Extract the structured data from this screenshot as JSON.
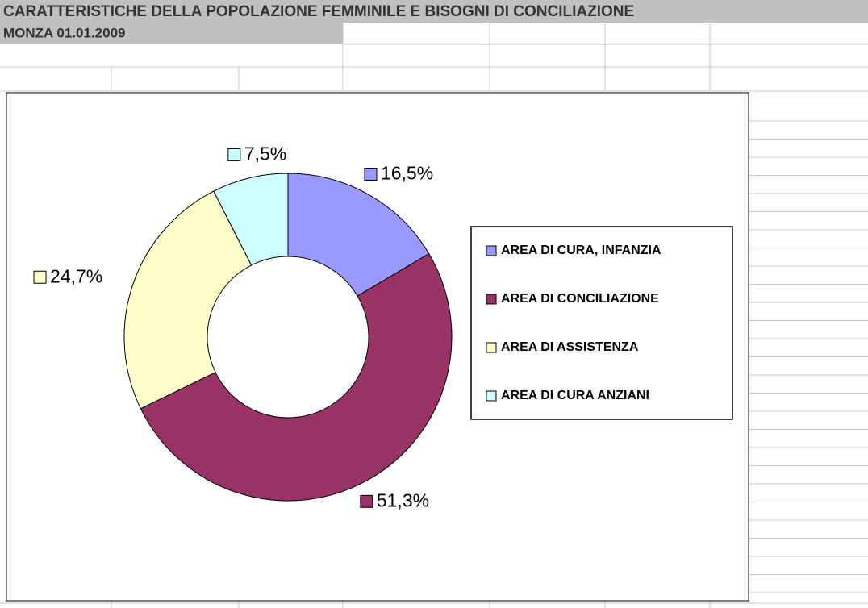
{
  "chart_data": {
    "type": "donut",
    "title": "CARATTERISTICHE DELLA POPOLAZIONE FEMMINILE E BISOGNI DI CONCILIAZIONE",
    "subtitle": "MONZA 01.01.2009",
    "categories": [
      "AREA DI CURA, INFANZIA",
      "AREA DI CONCILIAZIONE",
      "AREA DI ASSISTENZA",
      "AREA DI CURA ANZIANI"
    ],
    "values": [
      16.5,
      51.3,
      24.7,
      7.5
    ],
    "value_labels": [
      "16,5%",
      "51,3%",
      "24,7%",
      "7,5%"
    ],
    "colors": [
      "#9999ff",
      "#993366",
      "#ffffcc",
      "#ccffff"
    ],
    "legend": "right"
  }
}
